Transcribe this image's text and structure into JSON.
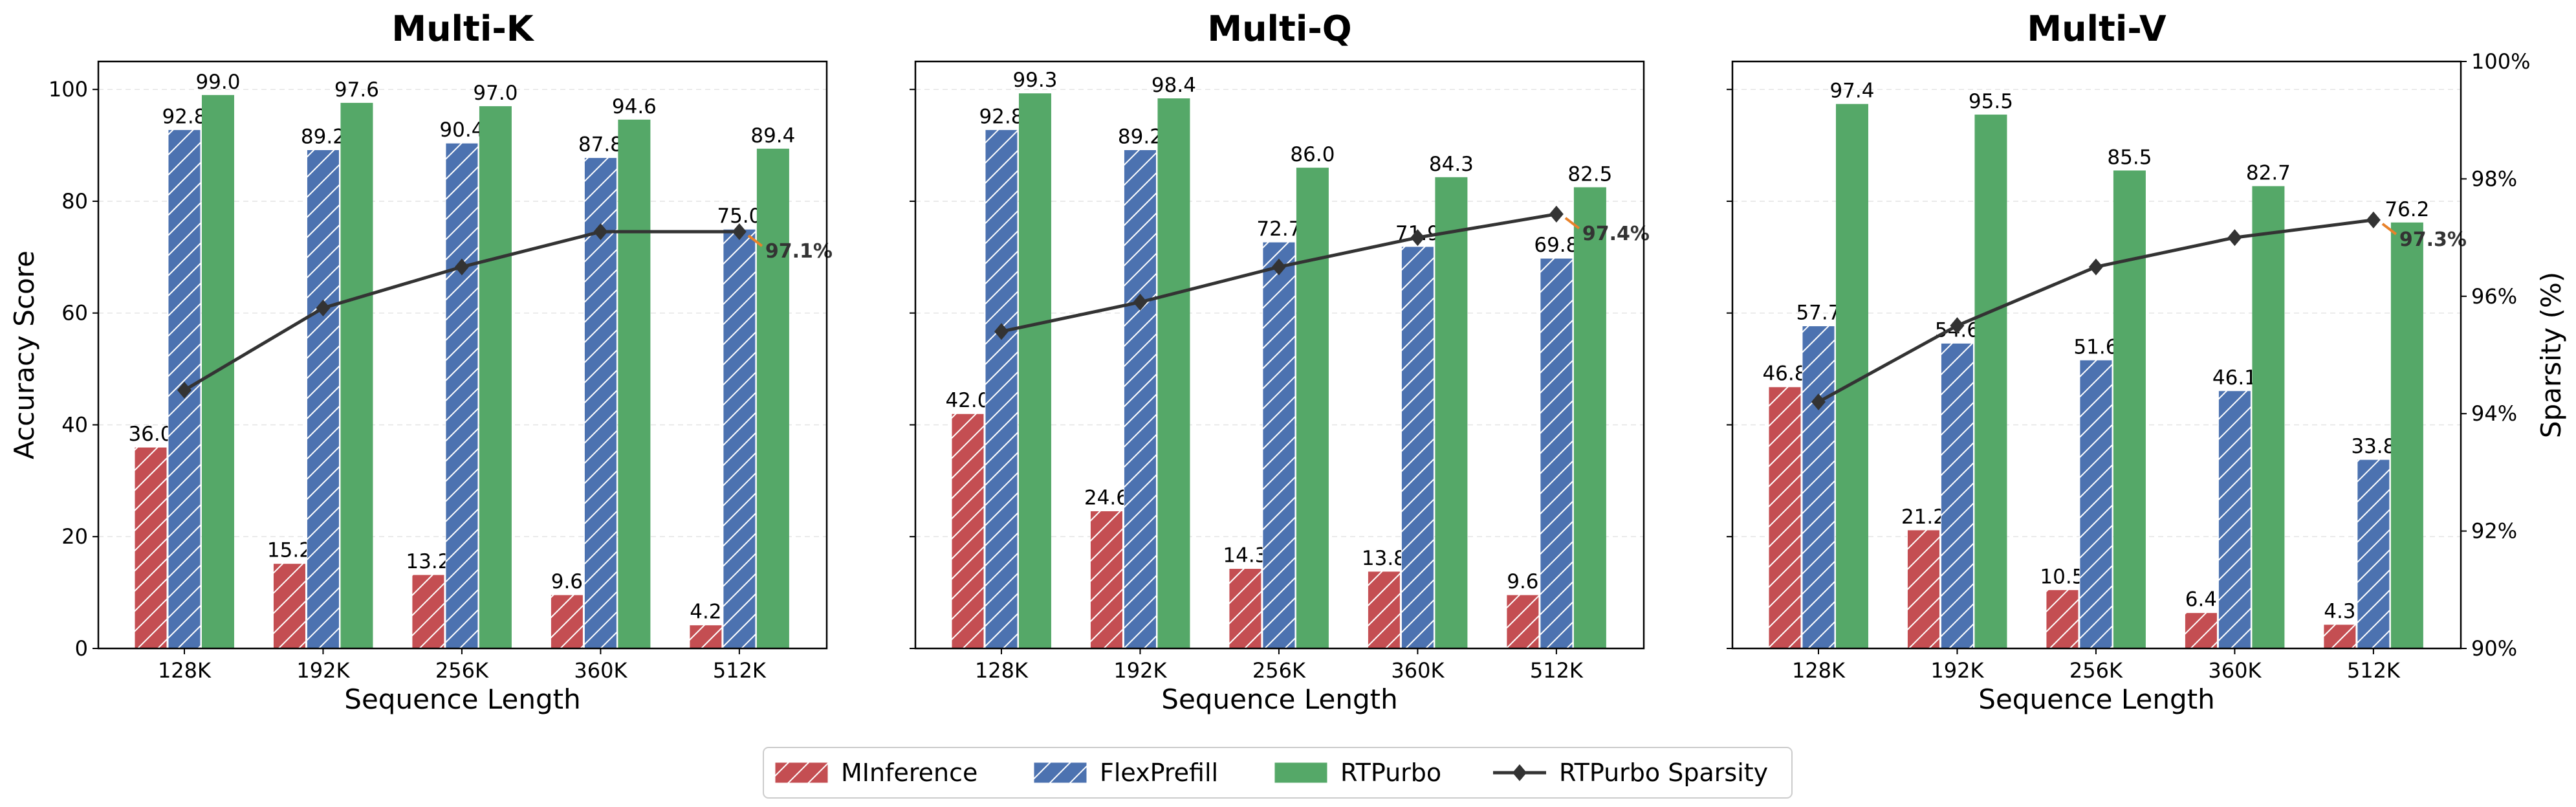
{
  "figure": {
    "legend_placement": "bottom-center",
    "legend": [
      {
        "name": "MInference",
        "kind": "bar",
        "color": "#c44e52",
        "hatch": "diagonal"
      },
      {
        "name": "FlexPrefill",
        "kind": "bar",
        "color": "#4c72b0",
        "hatch": "diagonal"
      },
      {
        "name": "RTPurbo",
        "kind": "bar",
        "color": "#55a868",
        "hatch": "none"
      },
      {
        "name": "RTPurbo Sparsity",
        "kind": "line",
        "color": "#333333",
        "marker": "diamond"
      }
    ],
    "left_axis_label": "Accuracy Score",
    "right_axis_label": "Sparsity (%)",
    "x_axis_label": "Sequence Length",
    "left_ticks": [
      "0",
      "20",
      "40",
      "60",
      "80",
      "100"
    ],
    "right_ticks": [
      "90%",
      "92%",
      "94%",
      "96%",
      "98%",
      "100%"
    ]
  },
  "chart_data": [
    {
      "type": "bar",
      "title": "Multi-K",
      "xlabel": "Sequence Length",
      "ylabel": "Accuracy Score",
      "ylim": [
        0,
        105
      ],
      "y2label": "Sparsity (%)",
      "y2lim": [
        90,
        100
      ],
      "grid": true,
      "categories": [
        "128K",
        "192K",
        "256K",
        "360K",
        "512K"
      ],
      "series": [
        {
          "name": "MInference",
          "values": [
            36.0,
            15.2,
            13.2,
            9.6,
            4.2
          ],
          "labels": [
            "36.0",
            "15.2",
            "13.2",
            "9.6",
            "4.2"
          ]
        },
        {
          "name": "FlexPrefill",
          "values": [
            92.8,
            89.2,
            90.4,
            87.8,
            75.0
          ],
          "labels": [
            "92.8",
            "89.2",
            "90.4",
            "87.8",
            "75.0"
          ]
        },
        {
          "name": "RTPurbo",
          "values": [
            99.0,
            97.6,
            97.0,
            94.6,
            89.4
          ],
          "labels": [
            "99.0",
            "97.6",
            "97.0",
            "94.6",
            "89.4"
          ]
        }
      ],
      "sparsity": {
        "name": "RTPurbo Sparsity",
        "values": [
          94.4,
          95.8,
          96.5,
          97.1,
          97.1
        ],
        "annotation": "97.1%"
      }
    },
    {
      "type": "bar",
      "title": "Multi-Q",
      "xlabel": "Sequence Length",
      "ylabel": "",
      "ylim": [
        0,
        105
      ],
      "y2lim": [
        90,
        100
      ],
      "grid": true,
      "categories": [
        "128K",
        "192K",
        "256K",
        "360K",
        "512K"
      ],
      "series": [
        {
          "name": "MInference",
          "values": [
            42.0,
            24.6,
            14.3,
            13.8,
            9.6
          ],
          "labels": [
            "42.0",
            "24.6",
            "14.3",
            "13.8",
            "9.6"
          ]
        },
        {
          "name": "FlexPrefill",
          "values": [
            92.8,
            89.2,
            72.7,
            71.9,
            69.8
          ],
          "labels": [
            "92.8",
            "89.2",
            "72.7",
            "71.9",
            "69.8"
          ]
        },
        {
          "name": "RTPurbo",
          "values": [
            99.3,
            98.4,
            86.0,
            84.3,
            82.5
          ],
          "labels": [
            "99.3",
            "98.4",
            "86.0",
            "84.3",
            "82.5"
          ]
        }
      ],
      "sparsity": {
        "name": "RTPurbo Sparsity",
        "values": [
          95.4,
          95.9,
          96.5,
          97.0,
          97.4
        ],
        "annotation": "97.4%"
      }
    },
    {
      "type": "bar",
      "title": "Multi-V",
      "xlabel": "Sequence Length",
      "ylabel": "",
      "ylim": [
        0,
        105
      ],
      "y2label": "Sparsity (%)",
      "y2lim": [
        90,
        100
      ],
      "grid": true,
      "categories": [
        "128K",
        "192K",
        "256K",
        "360K",
        "512K"
      ],
      "series": [
        {
          "name": "MInference",
          "values": [
            46.8,
            21.2,
            10.5,
            6.4,
            4.3
          ],
          "labels": [
            "46.8",
            "21.2",
            "10.5",
            "6.4",
            "4.3"
          ]
        },
        {
          "name": "FlexPrefill",
          "values": [
            57.7,
            54.6,
            51.6,
            46.1,
            33.8
          ],
          "labels": [
            "57.7",
            "54.6",
            "51.6",
            "46.1",
            "33.8"
          ]
        },
        {
          "name": "RTPurbo",
          "values": [
            97.4,
            95.5,
            85.5,
            82.7,
            76.2
          ],
          "labels": [
            "97.4",
            "95.5",
            "85.5",
            "82.7",
            "76.2"
          ]
        }
      ],
      "sparsity": {
        "name": "RTPurbo Sparsity",
        "values": [
          94.2,
          95.5,
          96.5,
          97.0,
          97.3
        ],
        "annotation": "97.3%"
      }
    }
  ]
}
